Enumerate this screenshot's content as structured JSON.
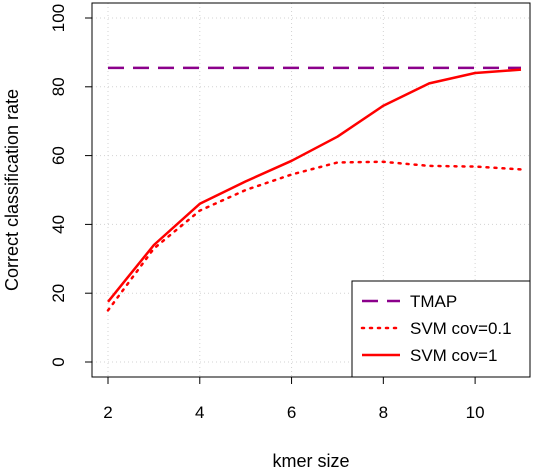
{
  "chart_data": {
    "type": "line",
    "title": "",
    "xlabel": "kmer size",
    "ylabel": "Correct classification rate",
    "xlim": [
      2,
      11
    ],
    "ylim": [
      0,
      100
    ],
    "xticks": [
      2,
      4,
      6,
      8,
      10
    ],
    "yticks": [
      0,
      20,
      40,
      60,
      80,
      100
    ],
    "grid": true,
    "legend_position": "bottom-right",
    "series": [
      {
        "name": "TMAP",
        "color": "#8B008B",
        "style": "dashed",
        "x": [
          2,
          11
        ],
        "y": [
          85.5,
          85.5
        ]
      },
      {
        "name": "SVM cov=0.1",
        "color": "#FF0000",
        "style": "dotted",
        "x": [
          2,
          3,
          4,
          5,
          6,
          7,
          8,
          9,
          10,
          11
        ],
        "y": [
          15,
          33,
          44,
          50,
          54.5,
          58,
          58.2,
          57,
          56.8,
          56
        ]
      },
      {
        "name": "SVM cov=1",
        "color": "#FF0000",
        "style": "solid",
        "x": [
          2,
          3,
          4,
          5,
          6,
          7,
          8,
          9,
          10,
          11
        ],
        "y": [
          17.5,
          34,
          46,
          52.5,
          58.5,
          65.5,
          74.5,
          81,
          84,
          85
        ]
      }
    ]
  }
}
